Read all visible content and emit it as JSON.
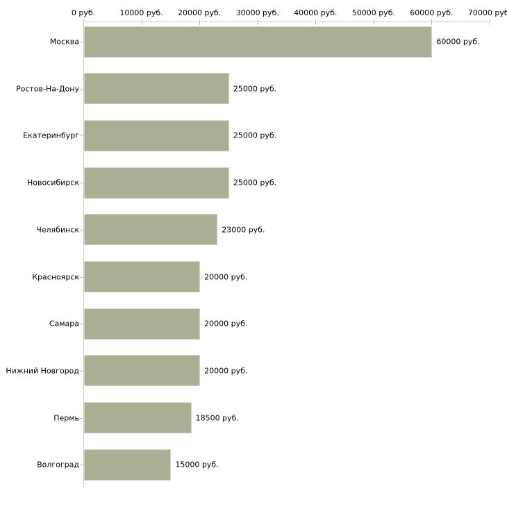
{
  "chart_data": {
    "type": "bar",
    "orientation": "horizontal",
    "title": "",
    "xlabel": "",
    "ylabel": "",
    "unit": "руб.",
    "categories": [
      "Москва",
      "Ростов-На-Дону",
      "Екатеринбург",
      "Новосибирск",
      "Челябинск",
      "Красноярск",
      "Самара",
      "Нижний Новгород",
      "Пермь",
      "Волгоград"
    ],
    "values": [
      60000,
      25000,
      25000,
      25000,
      23000,
      20000,
      20000,
      20000,
      18500,
      15000
    ],
    "value_labels": [
      "60000 руб.",
      "25000 руб.",
      "25000 руб.",
      "25000 руб.",
      "23000 руб.",
      "20000 руб.",
      "20000 руб.",
      "20000 руб.",
      "18500 руб.",
      "15000 руб."
    ],
    "xlim": [
      0,
      70000
    ],
    "x_ticks": [
      0,
      10000,
      20000,
      30000,
      40000,
      50000,
      60000,
      70000
    ],
    "x_tick_labels": [
      "0 руб.",
      "10000 руб.",
      "20000 руб.",
      "30000 руб.",
      "40000 руб.",
      "50000 руб.",
      "60000 руб.",
      "70000 руб."
    ],
    "grid": false,
    "legend": false,
    "axis_position": "top",
    "colors": {
      "bar_fill": "#a9af93",
      "bar_border": "#d2d4c4",
      "axis_line": "#c9c9c9",
      "tick": "#bfbf9d",
      "text": "#000000",
      "background": "#ffffff"
    }
  }
}
